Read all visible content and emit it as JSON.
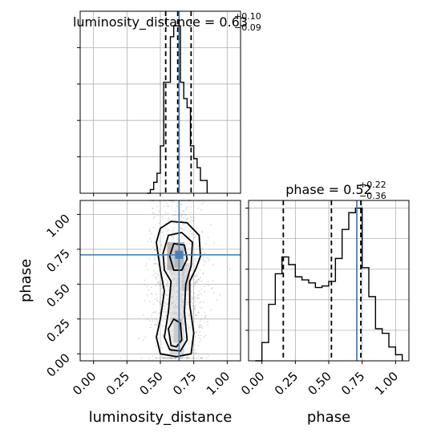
{
  "chart_data": [
    {
      "type": "histogram",
      "panel": "luminosity_distance marginal",
      "title_text": "luminosity_distance = 0.63",
      "title_sup": "+0.10",
      "title_sub": "−0.09",
      "bin_edges": [
        0.4,
        0.425,
        0.45,
        0.475,
        0.5,
        0.525,
        0.55,
        0.575,
        0.6,
        0.625,
        0.65,
        0.675,
        0.7,
        0.725,
        0.75,
        0.775,
        0.8,
        0.825,
        0.85
      ],
      "counts": [
        0.0,
        0.02,
        0.06,
        0.11,
        0.26,
        0.61,
        0.61,
        0.86,
        0.92,
        0.92,
        0.61,
        0.52,
        0.47,
        0.26,
        0.19,
        0.14,
        0.07,
        0.07
      ],
      "quantile_lines": [
        0.54,
        0.63,
        0.73
      ],
      "truth": 0.64,
      "xlim": [
        -0.1,
        1.1
      ],
      "ylim": [
        0.0,
        1.0
      ],
      "grid": true
    },
    {
      "type": "scatter",
      "panel": "joint contour luminosity_distance vs phase",
      "xlabel": "luminosity_distance",
      "ylabel": "phase",
      "xticks": [
        "0.00",
        "0.25",
        "0.50",
        "0.75",
        "1.00"
      ],
      "yticks": [
        "0.00",
        "0.25",
        "0.50",
        "0.75",
        "1.00"
      ],
      "truth": {
        "x": 0.64,
        "y": 0.71
      },
      "xlim": [
        -0.1,
        1.1
      ],
      "ylim": [
        -0.05,
        1.1
      ],
      "grid": true
    },
    {
      "type": "histogram",
      "panel": "phase marginal",
      "title_text": "phase = 0.52",
      "title_sup": "+0.22",
      "title_sub": "−0.36",
      "xlabel": "phase",
      "xticks": [
        "0.00",
        "0.25",
        "0.50",
        "0.75",
        "1.00"
      ],
      "bin_edges": [
        -0.05,
        0.0,
        0.05,
        0.1,
        0.15,
        0.2,
        0.25,
        0.3,
        0.35,
        0.4,
        0.45,
        0.5,
        0.55,
        0.6,
        0.65,
        0.7,
        0.75,
        0.8,
        0.85,
        0.9,
        0.95,
        1.0,
        1.05
      ],
      "counts": [
        0.0,
        0.12,
        0.37,
        0.57,
        0.68,
        0.63,
        0.55,
        0.53,
        0.51,
        0.48,
        0.49,
        0.52,
        0.67,
        0.86,
        0.97,
        1.0,
        0.61,
        0.42,
        0.21,
        0.18,
        0.09,
        0.04
      ],
      "quantile_lines": [
        0.16,
        0.52,
        0.74
      ],
      "truth": 0.71,
      "xlim": [
        -0.1,
        1.1
      ],
      "ylim": [
        0.0,
        1.05
      ],
      "grid": true
    }
  ],
  "colors": {
    "truth": "#4682b4",
    "hist": "#000000",
    "quantile": "#000000",
    "grid": "#b0b0b0",
    "density_dark": "#555555"
  }
}
